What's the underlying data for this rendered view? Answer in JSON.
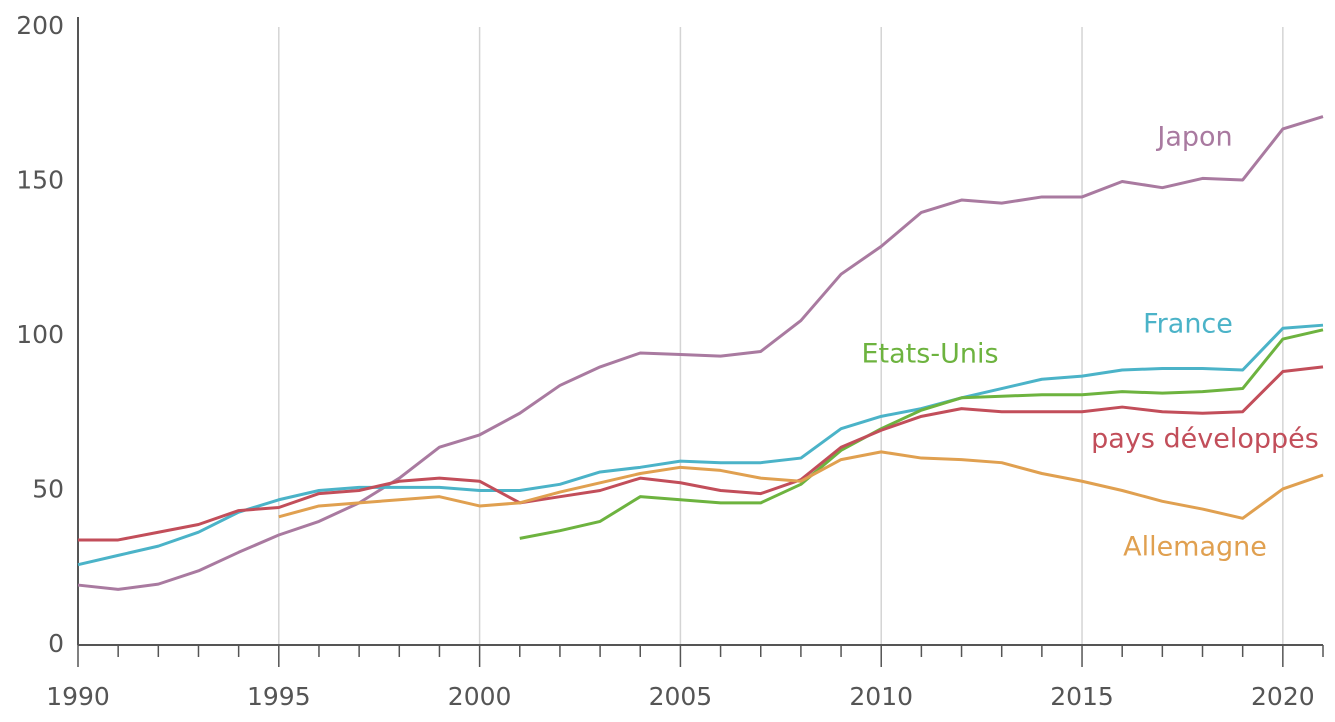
{
  "chart_data": {
    "type": "line",
    "x": [
      1990,
      1991,
      1992,
      1993,
      1994,
      1995,
      1996,
      1997,
      1998,
      1999,
      2000,
      2001,
      2002,
      2003,
      2004,
      2005,
      2006,
      2007,
      2008,
      2009,
      2010,
      2011,
      2012,
      2013,
      2014,
      2015,
      2016,
      2017,
      2018,
      2019,
      2020,
      2021
    ],
    "xlim": [
      1990,
      2021
    ],
    "xticks": [
      1990,
      1995,
      2000,
      2005,
      2010,
      2015,
      2020
    ],
    "xminorticks": [
      1991,
      1992,
      1993,
      1994,
      1996,
      1997,
      1998,
      1999,
      2001,
      2002,
      2003,
      2004,
      2006,
      2007,
      2008,
      2009,
      2011,
      2012,
      2013,
      2014,
      2016,
      2017,
      2018,
      2019,
      2021
    ],
    "ylim": [
      0,
      200
    ],
    "yticks": [
      0,
      50,
      100,
      150,
      200
    ],
    "grid": "x",
    "series": [
      {
        "name": "Japon",
        "color": "#a97aa0",
        "values": [
          19.4,
          18,
          19.7,
          24,
          30,
          35.6,
          40,
          46,
          54,
          64,
          68,
          75,
          84,
          90,
          94.5,
          94,
          93.5,
          95,
          105,
          120,
          129,
          140,
          144,
          143,
          145,
          145,
          150,
          148,
          151,
          150.5,
          167,
          171
        ]
      },
      {
        "name": "France",
        "color": "#4bb3c8",
        "values": [
          26,
          29,
          32,
          36.5,
          43,
          47,
          50,
          51,
          51,
          51,
          50,
          50,
          52,
          56,
          57.5,
          59.5,
          59,
          59,
          60.5,
          70,
          74,
          76.5,
          80,
          83,
          86,
          87,
          89,
          89.5,
          89.5,
          89,
          102.5,
          103.5
        ]
      },
      {
        "name": "Etats-Unis",
        "color": "#6db33f",
        "values": [
          null,
          null,
          null,
          null,
          null,
          null,
          null,
          null,
          null,
          null,
          null,
          34.5,
          37,
          40,
          48,
          47,
          46,
          46,
          52,
          63,
          70,
          76,
          80,
          80.5,
          81,
          81,
          82,
          81.5,
          82,
          83,
          99,
          102
        ]
      },
      {
        "name": "pays développés",
        "color": "#c24e5a",
        "values": [
          34,
          34,
          36.5,
          39,
          43.5,
          44.5,
          49,
          50,
          53,
          54,
          53,
          46,
          48,
          50,
          54,
          52.5,
          50,
          49,
          53.5,
          64,
          69.5,
          74,
          76.5,
          75.5,
          75.5,
          75.5,
          77,
          75.5,
          75,
          75.5,
          88.5,
          90
        ]
      },
      {
        "name": "Allemagne",
        "color": "#e0a050",
        "values": [
          null,
          null,
          null,
          null,
          null,
          41.5,
          45,
          46,
          47,
          48,
          45,
          46,
          49.5,
          52.5,
          55.5,
          57.5,
          56.5,
          54,
          53,
          60,
          62.5,
          60.5,
          60,
          59,
          55.5,
          53,
          50,
          46.5,
          44,
          41,
          50.5,
          55
        ]
      }
    ]
  }
}
